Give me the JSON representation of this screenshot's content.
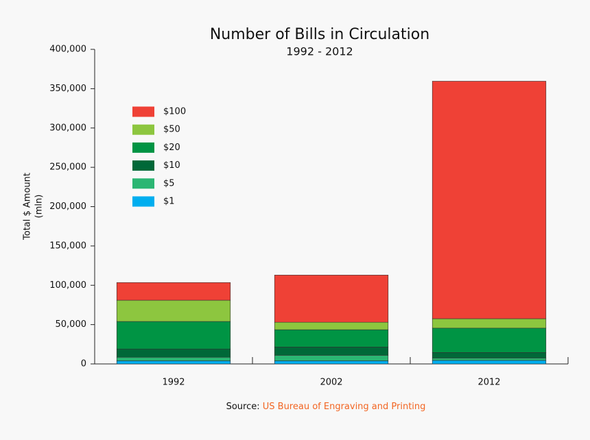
{
  "chart_data": {
    "type": "stacked_bar",
    "title": "Number of Bills in Circulation",
    "subtitle": "1992 - 2012",
    "y_label": [
      "Total $ Amount",
      "(mln)"
    ],
    "categories": [
      "1992",
      "2002",
      "2012"
    ],
    "series": [
      {
        "name": "$1",
        "color": "#00aeef",
        "values": [
          4000,
          4000,
          4500
        ]
      },
      {
        "name": "$5",
        "color": "#2bb673",
        "values": [
          4500,
          7000,
          3000
        ]
      },
      {
        "name": "$10",
        "color": "#006838",
        "values": [
          10500,
          10500,
          7000
        ]
      },
      {
        "name": "$20",
        "color": "#009444",
        "values": [
          35000,
          22000,
          31000
        ]
      },
      {
        "name": "$50",
        "color": "#8dc63f",
        "values": [
          27000,
          9500,
          12000
        ]
      },
      {
        "name": "$100",
        "color": "#ef4136",
        "values": [
          22500,
          60000,
          302000
        ]
      }
    ],
    "ylim": [
      0,
      400000
    ],
    "yticks": [
      0,
      {
        "value": 50000,
        "label": "50,000"
      },
      {
        "value": 100000,
        "label": "100,000"
      },
      {
        "value": 150000,
        "label": "150,000"
      },
      {
        "value": 200000,
        "label": "200,000"
      },
      {
        "value": 250000,
        "label": "250,000"
      },
      {
        "value": 300000,
        "label": "300,000"
      },
      {
        "value": 350000,
        "label": "350,000"
      },
      {
        "value": 400000,
        "label": "400,000"
      }
    ],
    "source_label": "Source:",
    "source_text": "US Bureau of Engraving and Printing",
    "source_color": "#f26522"
  }
}
